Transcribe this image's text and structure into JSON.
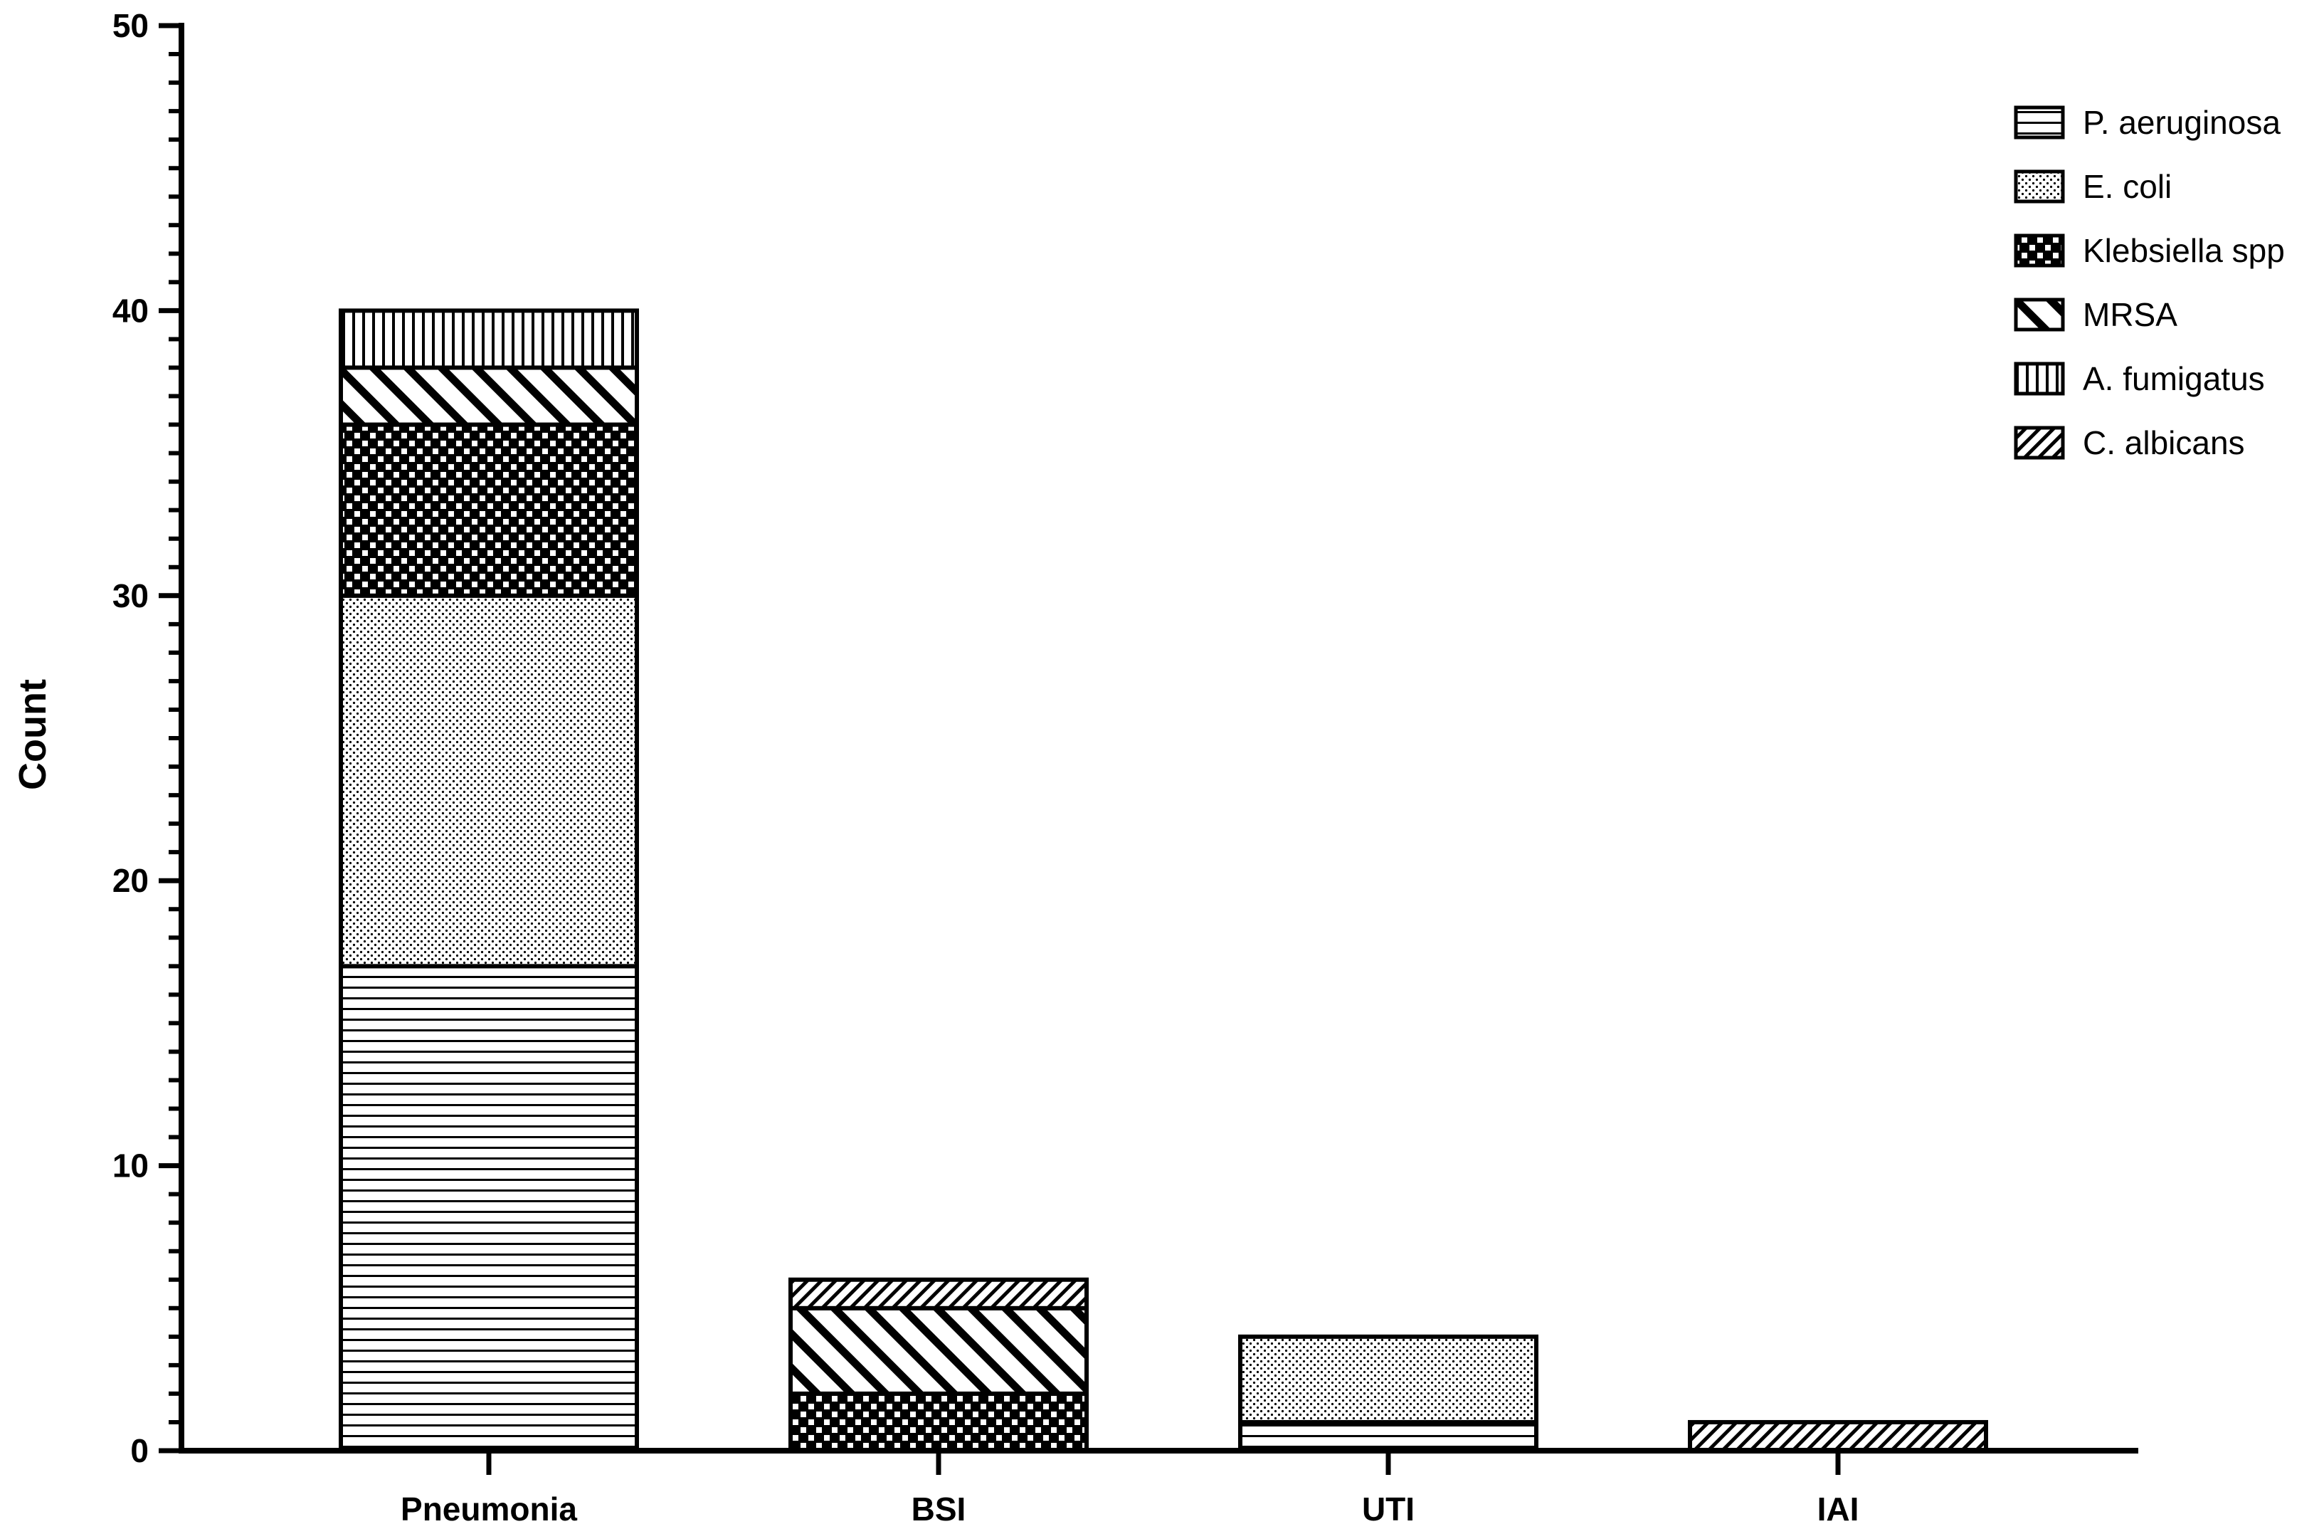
{
  "chart_data": {
    "type": "bar",
    "stacked": true,
    "title": "",
    "xlabel": "",
    "ylabel": "Count",
    "ylim": [
      0,
      50
    ],
    "y_major_ticks": [
      0,
      10,
      20,
      30,
      40,
      50
    ],
    "y_minor_step": 1,
    "grid": false,
    "legend_position": "top-right",
    "categories": [
      "Pneumonia",
      "BSI",
      "UTI",
      "IAI"
    ],
    "series": [
      {
        "name": "P. aeruginosa",
        "pattern": "horizontal-lines",
        "values": [
          17,
          0,
          1,
          0
        ]
      },
      {
        "name": "E. coli",
        "pattern": "fine-dots",
        "values": [
          13,
          0,
          3,
          0
        ]
      },
      {
        "name": "Klebsiella spp",
        "pattern": "checkerboard",
        "values": [
          6,
          2,
          0,
          0
        ]
      },
      {
        "name": "MRSA",
        "pattern": "wide-diagonal",
        "values": [
          2,
          3,
          0,
          0
        ]
      },
      {
        "name": "A. fumigatus",
        "pattern": "vertical-lines",
        "values": [
          2,
          0,
          0,
          0
        ]
      },
      {
        "name": "C. albicans",
        "pattern": "narrow-back-diagonal",
        "values": [
          0,
          1,
          0,
          1
        ]
      }
    ],
    "colors": {
      "stroke": "#000000",
      "fill": "#ffffff"
    }
  }
}
